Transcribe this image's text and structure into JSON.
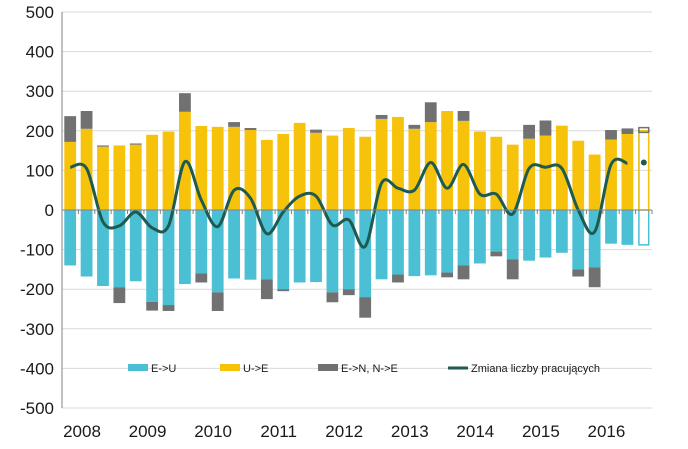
{
  "chart_data": {
    "type": "bar",
    "title": "",
    "xlabel": "",
    "ylabel": "",
    "ylim": [
      -500,
      500
    ],
    "yticks": [
      "500",
      "400",
      "300",
      "200",
      "100",
      "0",
      "-100",
      "-200",
      "-300",
      "-400",
      "-500"
    ],
    "year_labels": [
      "2008",
      "2009",
      "2010",
      "2011",
      "2012",
      "2013",
      "2014",
      "2015",
      "2016"
    ],
    "quarters": 35,
    "series": [
      {
        "name": "E->U",
        "color": "#4bbfd4",
        "values": [
          -140,
          -168,
          -192,
          -195,
          -180,
          -232,
          -240,
          -187,
          -160,
          -208,
          -173,
          -176,
          -175,
          -200,
          -183,
          -182,
          -208,
          -200,
          -220,
          -175,
          -163,
          -167,
          -165,
          -158,
          -140,
          -135,
          -105,
          -125,
          -128,
          -120,
          -108,
          -150,
          -145,
          -85,
          -88
        ]
      },
      {
        "name": "U->E",
        "color": "#f7c20a",
        "values": [
          172,
          205,
          160,
          163,
          165,
          190,
          198,
          248,
          212,
          210,
          210,
          202,
          177,
          192,
          220,
          195,
          188,
          207,
          185,
          230,
          235,
          205,
          222,
          250,
          225,
          198,
          185,
          165,
          180,
          188,
          213,
          175,
          140,
          178,
          192
        ]
      },
      {
        "name": "E->N, N->E",
        "color": "#717171",
        "pos_values": [
          65,
          45,
          3,
          0,
          3,
          0,
          0,
          47,
          0,
          0,
          12,
          5,
          0,
          0,
          0,
          8,
          0,
          0,
          0,
          10,
          0,
          10,
          50,
          0,
          25,
          0,
          0,
          0,
          35,
          38,
          0,
          0,
          0,
          24,
          14
        ],
        "neg_values": [
          0,
          0,
          0,
          -40,
          0,
          -22,
          -15,
          0,
          -23,
          -47,
          0,
          0,
          -50,
          -5,
          0,
          0,
          -25,
          -15,
          -52,
          0,
          -20,
          0,
          0,
          -12,
          -35,
          0,
          -12,
          -50,
          0,
          0,
          0,
          -18,
          -50,
          0,
          0
        ]
      }
    ],
    "line": {
      "name": "Zmiana liczby pracujących",
      "color": "#1e5a50",
      "values": [
        108,
        105,
        -30,
        -40,
        -5,
        -45,
        -40,
        122,
        25,
        -42,
        50,
        30,
        -60,
        -5,
        35,
        35,
        -38,
        -25,
        -92,
        68,
        55,
        50,
        120,
        55,
        115,
        40,
        40,
        -10,
        105,
        108,
        105,
        0,
        -55,
        115,
        118
      ]
    },
    "legend": {
      "position": "bottom-center",
      "items": [
        "E->U",
        "U->E",
        "E->N, N->E",
        "Zmiana liczby pracujących"
      ]
    }
  }
}
